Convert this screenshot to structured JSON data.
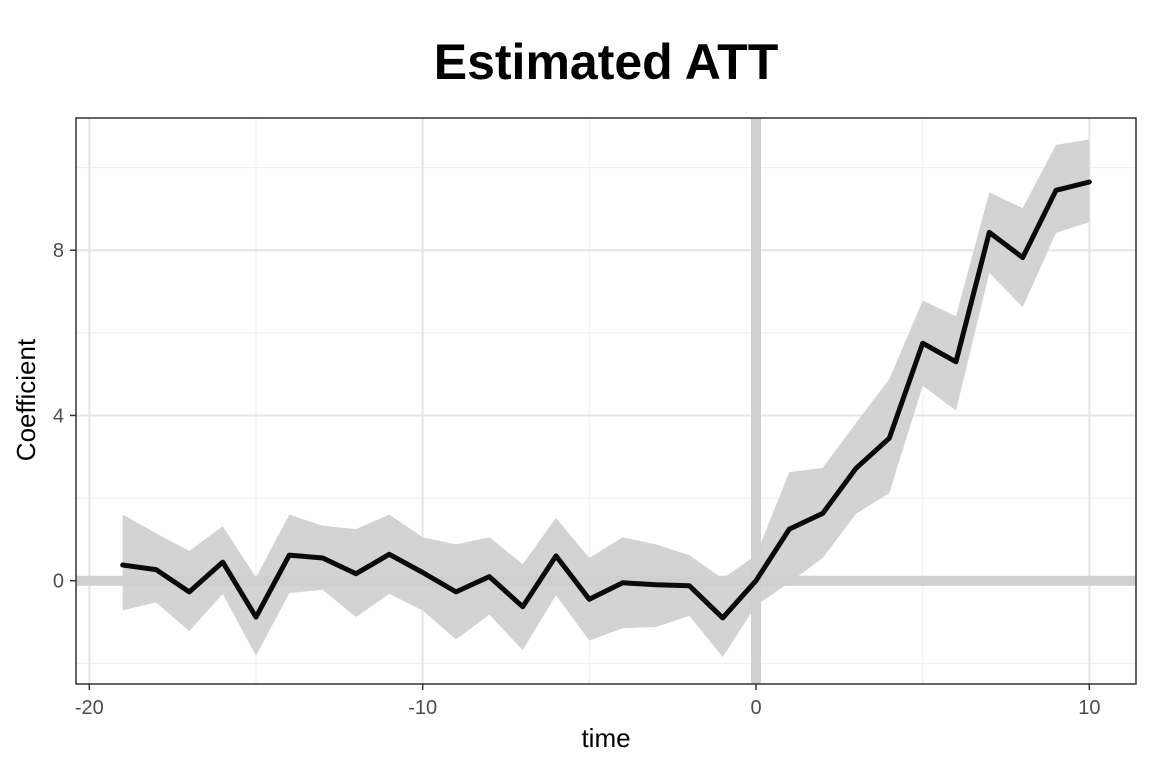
{
  "chart_data": {
    "type": "line",
    "title": "Estimated ATT",
    "xlabel": "time",
    "ylabel": "Coefficient",
    "xlim": [
      -20.4,
      11.4
    ],
    "ylim": [
      -2.5,
      11.2
    ],
    "x_ticks": [
      -20,
      -10,
      0,
      10
    ],
    "x_tick_labels": [
      "-20",
      "-10",
      "0",
      "10"
    ],
    "y_ticks": [
      0,
      4,
      8
    ],
    "y_tick_labels": [
      "0",
      "4",
      "8"
    ],
    "grid": true,
    "reference_lines": {
      "x": 0,
      "y": 0
    },
    "series": [
      {
        "x": [
          -19,
          -18,
          -17,
          -16,
          -15,
          -14,
          -13,
          -12,
          -11,
          -10,
          -9,
          -8,
          -7,
          -6,
          -5,
          -4,
          -3,
          -2,
          -1,
          0,
          1,
          2,
          3,
          4,
          5,
          6,
          7,
          8,
          9,
          10
        ],
        "y": [
          0.38,
          0.27,
          -0.27,
          0.45,
          -0.88,
          0.62,
          0.55,
          0.17,
          0.64,
          0.2,
          -0.27,
          0.1,
          -0.63,
          0.6,
          -0.45,
          -0.05,
          -0.1,
          -0.12,
          -0.9,
          0.0,
          1.25,
          1.63,
          2.72,
          3.45,
          5.75,
          5.3,
          8.43,
          7.82,
          9.45,
          9.65
        ],
        "lower": [
          -0.72,
          -0.52,
          -1.22,
          -0.32,
          -1.82,
          -0.3,
          -0.22,
          -0.88,
          -0.32,
          -0.72,
          -1.42,
          -0.82,
          -1.68,
          -0.35,
          -1.45,
          -1.15,
          -1.12,
          -0.85,
          -1.85,
          -0.6,
          -0.05,
          0.55,
          1.62,
          2.12,
          4.72,
          4.12,
          7.45,
          6.62,
          8.42,
          8.68
        ],
        "upper": [
          1.6,
          1.15,
          0.72,
          1.32,
          0.08,
          1.6,
          1.33,
          1.25,
          1.6,
          1.05,
          0.88,
          1.05,
          0.4,
          1.52,
          0.55,
          1.05,
          0.88,
          0.62,
          0.05,
          0.62,
          2.63,
          2.73,
          3.82,
          4.88,
          6.78,
          6.4,
          9.4,
          9.02,
          10.55,
          10.68
        ],
        "line_color": "#0a0a0a",
        "band_color": "#d3d3d3"
      }
    ],
    "colors": {
      "panel_border": "#333333",
      "grid_major": "#e6e6e6",
      "grid_minor": "#f0f0f0",
      "reference_line": "#cfcfcf"
    }
  }
}
